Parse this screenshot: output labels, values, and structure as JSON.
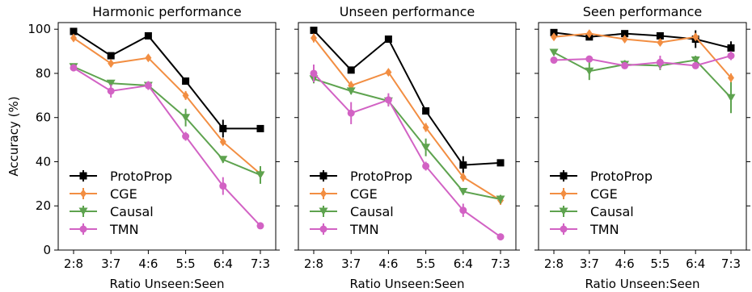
{
  "chart_data": [
    {
      "type": "line",
      "title": "Harmonic performance",
      "xlabel": "Ratio Unseen:Seen",
      "ylabel": "Accuracy (%)",
      "ylim": [
        0,
        103
      ],
      "yticks": [
        0,
        20,
        40,
        60,
        80,
        100
      ],
      "categories": [
        "2:8",
        "3:7",
        "4:6",
        "5:5",
        "6:4",
        "7:3"
      ],
      "legend_position": "lower-left",
      "series": [
        {
          "name": "ProtoProp",
          "color": "#000000",
          "marker": "square",
          "values": [
            99,
            88,
            97,
            76.5,
            55,
            55
          ],
          "errors": [
            1,
            1.5,
            1,
            1,
            4,
            1
          ]
        },
        {
          "name": "CGE",
          "color": "#f28e42",
          "marker": "diamond",
          "values": [
            96,
            84.5,
            87,
            70,
            49,
            34.5
          ],
          "errors": [
            1.5,
            1.5,
            1.5,
            2,
            1.5,
            1.5
          ]
        },
        {
          "name": "Causal",
          "color": "#5ea34f",
          "marker": "triangle-down",
          "values": [
            83,
            75.5,
            74.5,
            60,
            41,
            34
          ],
          "errors": [
            1.5,
            1.5,
            1.5,
            4,
            1.5,
            4
          ]
        },
        {
          "name": "TMN",
          "color": "#d262c4",
          "marker": "circle",
          "values": [
            82.5,
            72,
            74.5,
            51.5,
            29,
            11
          ],
          "errors": [
            1.5,
            3,
            2,
            2,
            4,
            1
          ]
        }
      ]
    },
    {
      "type": "line",
      "title": "Unseen performance",
      "xlabel": "Ratio Unseen:Seen",
      "ylabel": "",
      "ylim": [
        0,
        103
      ],
      "yticks": [
        0,
        20,
        40,
        60,
        80,
        100
      ],
      "categories": [
        "2:8",
        "3:7",
        "4:6",
        "5:5",
        "6:4",
        "7:3"
      ],
      "legend_position": "lower-left",
      "series": [
        {
          "name": "ProtoProp",
          "color": "#000000",
          "marker": "square",
          "values": [
            99.5,
            81.5,
            95.5,
            63,
            38.5,
            39.5
          ],
          "errors": [
            1,
            1.5,
            1,
            1.5,
            4,
            1
          ]
        },
        {
          "name": "CGE",
          "color": "#f28e42",
          "marker": "diamond",
          "values": [
            96,
            74.5,
            80.5,
            55.5,
            33,
            22.5
          ],
          "errors": [
            2,
            2,
            1.5,
            2,
            2,
            2
          ]
        },
        {
          "name": "Causal",
          "color": "#5ea34f",
          "marker": "triangle-down",
          "values": [
            77.5,
            72,
            67.5,
            46.5,
            26.5,
            23
          ],
          "errors": [
            2,
            1.5,
            2,
            4,
            1.5,
            2
          ]
        },
        {
          "name": "TMN",
          "color": "#d262c4",
          "marker": "circle",
          "values": [
            80,
            62,
            68,
            38,
            18,
            6
          ],
          "errors": [
            4,
            5,
            3,
            2,
            3,
            1
          ]
        }
      ]
    },
    {
      "type": "line",
      "title": "Seen performance",
      "xlabel": "Ratio Unseen:Seen",
      "ylabel": "",
      "ylim": [
        0,
        103
      ],
      "yticks": [
        0,
        20,
        40,
        60,
        80,
        100
      ],
      "categories": [
        "2:8",
        "3:7",
        "4:6",
        "5:5",
        "6:4",
        "7:3"
      ],
      "legend_position": "lower-left",
      "series": [
        {
          "name": "ProtoProp",
          "color": "#000000",
          "marker": "square",
          "values": [
            98.5,
            96.5,
            98,
            97,
            95.5,
            91.5
          ],
          "errors": [
            1,
            1,
            1,
            1,
            4,
            3
          ]
        },
        {
          "name": "CGE",
          "color": "#f28e42",
          "marker": "diamond",
          "values": [
            96.5,
            98,
            95.5,
            94,
            96.5,
            78
          ],
          "errors": [
            1,
            1.5,
            1,
            1,
            1,
            2
          ]
        },
        {
          "name": "Causal",
          "color": "#5ea34f",
          "marker": "triangle-down",
          "values": [
            89.5,
            81,
            84,
            83.5,
            86,
            69
          ],
          "errors": [
            1.5,
            4,
            2,
            2,
            2,
            7
          ]
        },
        {
          "name": "TMN",
          "color": "#d262c4",
          "marker": "circle",
          "values": [
            86,
            86.5,
            83.5,
            85,
            83.5,
            88
          ],
          "errors": [
            1,
            1,
            1,
            3,
            1,
            2
          ]
        }
      ]
    }
  ]
}
